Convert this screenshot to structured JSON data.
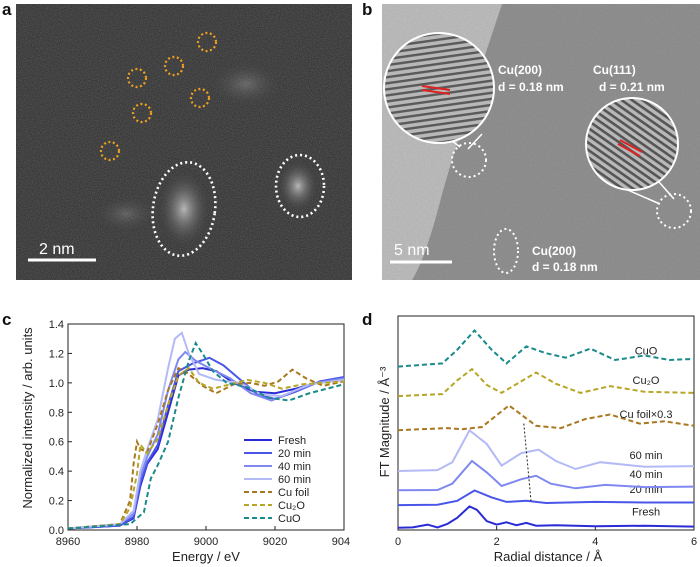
{
  "panels": {
    "a": {
      "letter": "a",
      "scale_bar": "2 nm"
    },
    "b": {
      "letter": "b",
      "scale_bar": "5 nm",
      "annotations": [
        {
          "plane": "Cu(200)",
          "d": "d = 0.18 nm"
        },
        {
          "plane": "Cu(111)",
          "d": "d = 0.21 nm"
        },
        {
          "plane": "Cu(200)",
          "d": "d = 0.18 nm"
        }
      ]
    },
    "c": {
      "letter": "c"
    },
    "d": {
      "letter": "d"
    }
  },
  "chart_data": [
    {
      "type": "line",
      "panel": "c",
      "xlabel": "Energy / eV",
      "ylabel": "Normalized intensity / arb. units",
      "xlim": [
        8960,
        9040
      ],
      "ylim": [
        0.0,
        1.4
      ],
      "x_ticks": [
        "8960",
        "8980",
        "9000",
        "9020",
        "9040"
      ],
      "y_ticks": [
        "0.0",
        "0.2",
        "0.4",
        "0.6",
        "0.8",
        "1.0",
        "1.2",
        "1.4"
      ],
      "legend_position": "bottom-right",
      "series": [
        {
          "name": "Fresh",
          "color": "#2b2bd6",
          "dash": "solid",
          "points": [
            [
              8960,
              0.01
            ],
            [
              8975,
              0.03
            ],
            [
              8979,
              0.08
            ],
            [
              8981,
              0.3
            ],
            [
              8983,
              0.45
            ],
            [
              8986,
              0.55
            ],
            [
              8989,
              0.8
            ],
            [
              8992,
              1.05
            ],
            [
              8995,
              1.09
            ],
            [
              8999,
              1.1
            ],
            [
              9003,
              1.08
            ],
            [
              9008,
              1.0
            ],
            [
              9014,
              0.94
            ],
            [
              9020,
              0.93
            ],
            [
              9026,
              0.96
            ],
            [
              9032,
              1.0
            ],
            [
              9040,
              1.02
            ]
          ]
        },
        {
          "name": "20 min",
          "color": "#4a56e8",
          "dash": "solid",
          "points": [
            [
              8960,
              0.01
            ],
            [
              8975,
              0.03
            ],
            [
              8979,
              0.09
            ],
            [
              8981,
              0.32
            ],
            [
              8983,
              0.46
            ],
            [
              8986,
              0.58
            ],
            [
              8989,
              0.85
            ],
            [
              8992,
              1.08
            ],
            [
              8996,
              1.13
            ],
            [
              9001,
              1.17
            ],
            [
              9005,
              1.12
            ],
            [
              9010,
              1.02
            ],
            [
              9015,
              0.92
            ],
            [
              9020,
              0.89
            ],
            [
              9026,
              0.94
            ],
            [
              9033,
              1.01
            ],
            [
              9040,
              1.04
            ]
          ]
        },
        {
          "name": "40 min",
          "color": "#7e88f0",
          "dash": "solid",
          "points": [
            [
              8960,
              0.01
            ],
            [
              8975,
              0.04
            ],
            [
              8979,
              0.11
            ],
            [
              8981,
              0.36
            ],
            [
              8983,
              0.5
            ],
            [
              8986,
              0.65
            ],
            [
              8989,
              0.95
            ],
            [
              8992,
              1.16
            ],
            [
              8994,
              1.21
            ],
            [
              8997,
              1.15
            ],
            [
              9001,
              1.1
            ],
            [
              9007,
              1.03
            ],
            [
              9013,
              0.93
            ],
            [
              9019,
              0.88
            ],
            [
              9025,
              0.94
            ],
            [
              9032,
              1.0
            ],
            [
              9040,
              1.03
            ]
          ]
        },
        {
          "name": "60 min",
          "color": "#b3baf6",
          "dash": "solid",
          "points": [
            [
              8960,
              0.01
            ],
            [
              8975,
              0.04
            ],
            [
              8979,
              0.13
            ],
            [
              8981,
              0.4
            ],
            [
              8983,
              0.55
            ],
            [
              8986,
              0.75
            ],
            [
              8989,
              1.1
            ],
            [
              8991,
              1.3
            ],
            [
              8993,
              1.34
            ],
            [
              8995,
              1.2
            ],
            [
              8998,
              1.06
            ],
            [
              9003,
              1.02
            ],
            [
              9010,
              1.0
            ],
            [
              9016,
              0.92
            ],
            [
              9022,
              0.91
            ],
            [
              9030,
              0.99
            ],
            [
              9040,
              1.02
            ]
          ]
        },
        {
          "name": "Cu  foil",
          "color": "#a9781e",
          "dash": "dashed",
          "points": [
            [
              8960,
              0.01
            ],
            [
              8975,
              0.04
            ],
            [
              8978,
              0.2
            ],
            [
              8979,
              0.45
            ],
            [
              8980,
              0.6
            ],
            [
              8981,
              0.55
            ],
            [
              8983,
              0.53
            ],
            [
              8986,
              0.72
            ],
            [
              8989,
              0.95
            ],
            [
              8992,
              1.1
            ],
            [
              8995,
              1.06
            ],
            [
              8999,
              0.98
            ],
            [
              9003,
              0.93
            ],
            [
              9008,
              0.99
            ],
            [
              9013,
              1.0
            ],
            [
              9017,
              0.98
            ],
            [
              9021,
              1.01
            ],
            [
              9025,
              1.09
            ],
            [
              9029,
              1.03
            ],
            [
              9034,
              0.98
            ],
            [
              9040,
              1.01
            ]
          ]
        },
        {
          "name": "Cu₂O",
          "color": "#b7a626",
          "dash": "dashed",
          "points": [
            [
              8960,
              0.01
            ],
            [
              8975,
              0.04
            ],
            [
              8978,
              0.15
            ],
            [
              8980,
              0.38
            ],
            [
              8981,
              0.58
            ],
            [
              8983,
              0.52
            ],
            [
              8986,
              0.62
            ],
            [
              8989,
              0.85
            ],
            [
              8992,
              1.05
            ],
            [
              8995,
              1.1
            ],
            [
              8998,
              1.0
            ],
            [
              9002,
              0.96
            ],
            [
              9007,
              0.99
            ],
            [
              9012,
              1.02
            ],
            [
              9017,
              1.0
            ],
            [
              9022,
              0.96
            ],
            [
              9028,
              0.99
            ],
            [
              9040,
              1.01
            ]
          ]
        },
        {
          "name": "CuO",
          "color": "#1b8a8a",
          "dash": "dashed",
          "points": [
            [
              8960,
              0.01
            ],
            [
              8978,
              0.04
            ],
            [
              8982,
              0.12
            ],
            [
              8984,
              0.35
            ],
            [
              8986,
              0.44
            ],
            [
              8989,
              0.6
            ],
            [
              8992,
              0.9
            ],
            [
              8995,
              1.15
            ],
            [
              8997,
              1.27
            ],
            [
              8999,
              1.2
            ],
            [
              9002,
              1.08
            ],
            [
              9006,
              1.0
            ],
            [
              9012,
              0.97
            ],
            [
              9018,
              0.9
            ],
            [
              9024,
              0.88
            ],
            [
              9030,
              0.93
            ],
            [
              9040,
              0.99
            ]
          ]
        }
      ]
    },
    {
      "type": "line",
      "panel": "d",
      "xlabel": "Radial distance / Å",
      "ylabel": "FT Magnitude / Å⁻³",
      "xlim": [
        0,
        6
      ],
      "x_ticks": [
        "0",
        "2",
        "4",
        "6"
      ],
      "series": [
        {
          "name": "Fresh",
          "color": "#2b2bd6",
          "dash": "solid",
          "offset": 0.0,
          "points": [
            [
              0,
              0.02
            ],
            [
              0.3,
              0.05
            ],
            [
              0.6,
              0.3
            ],
            [
              0.8,
              0.05
            ],
            [
              1.0,
              0.35
            ],
            [
              1.2,
              0.9
            ],
            [
              1.45,
              1.9
            ],
            [
              1.6,
              1.6
            ],
            [
              1.8,
              0.6
            ],
            [
              2.0,
              0.3
            ],
            [
              2.2,
              0.5
            ],
            [
              2.4,
              0.25
            ],
            [
              2.6,
              0.45
            ],
            [
              2.8,
              0.2
            ],
            [
              3.2,
              0.25
            ],
            [
              4,
              0.15
            ],
            [
              5,
              0.2
            ],
            [
              6,
              0.12
            ]
          ]
        },
        {
          "name": "20 min",
          "color": "#4a56e8",
          "dash": "solid",
          "offset": 2.0,
          "points": [
            [
              0,
              0.02
            ],
            [
              0.8,
              0.05
            ],
            [
              1.2,
              0.4
            ],
            [
              1.55,
              1.3
            ],
            [
              1.9,
              0.7
            ],
            [
              2.2,
              0.3
            ],
            [
              2.6,
              0.4
            ],
            [
              3.0,
              0.2
            ],
            [
              4,
              0.3
            ],
            [
              5,
              0.25
            ],
            [
              6,
              0.25
            ]
          ]
        },
        {
          "name": "40 min",
          "color": "#7e88f0",
          "dash": "solid",
          "offset": 3.3,
          "points": [
            [
              0,
              0.02
            ],
            [
              0.8,
              0.05
            ],
            [
              1.1,
              0.6
            ],
            [
              1.5,
              2.6
            ],
            [
              1.8,
              1.6
            ],
            [
              2.1,
              0.4
            ],
            [
              2.5,
              1.0
            ],
            [
              2.8,
              1.3
            ],
            [
              3.1,
              0.6
            ],
            [
              3.6,
              0.2
            ],
            [
              4.2,
              0.5
            ],
            [
              5,
              0.3
            ],
            [
              6,
              0.35
            ]
          ]
        },
        {
          "name": "60 min",
          "color": "#b3baf6",
          "dash": "solid",
          "offset": 5.0,
          "points": [
            [
              0,
              0.02
            ],
            [
              0.8,
              0.1
            ],
            [
              1.1,
              0.8
            ],
            [
              1.45,
              3.6
            ],
            [
              1.8,
              2.4
            ],
            [
              2.1,
              0.5
            ],
            [
              2.5,
              1.6
            ],
            [
              2.85,
              1.9
            ],
            [
              3.2,
              0.9
            ],
            [
              3.6,
              0.2
            ],
            [
              4.1,
              0.8
            ],
            [
              5,
              0.4
            ],
            [
              6,
              0.45
            ]
          ]
        },
        {
          "name": "Cu foil×0.3",
          "color": "#a9781e",
          "dash": "dashed",
          "offset": 8.6,
          "points": [
            [
              0,
              0.02
            ],
            [
              1.0,
              0.2
            ],
            [
              1.3,
              0.1
            ],
            [
              1.7,
              0.3
            ],
            [
              2.25,
              2.2
            ],
            [
              2.8,
              0.4
            ],
            [
              3.3,
              0.2
            ],
            [
              3.8,
              1.0
            ],
            [
              4.3,
              1.4
            ],
            [
              4.9,
              0.6
            ],
            [
              5.4,
              0.8
            ],
            [
              6,
              0.4
            ]
          ]
        },
        {
          "name": "Cu₂O",
          "color": "#b7a626",
          "dash": "dashed",
          "offset": 11.6,
          "points": [
            [
              0,
              0.02
            ],
            [
              0.9,
              0.2
            ],
            [
              1.2,
              1.4
            ],
            [
              1.5,
              2.4
            ],
            [
              1.8,
              1.0
            ],
            [
              2.1,
              0.3
            ],
            [
              2.45,
              1.2
            ],
            [
              2.8,
              2.1
            ],
            [
              3.2,
              1.1
            ],
            [
              3.7,
              0.3
            ],
            [
              4.3,
              0.9
            ],
            [
              5,
              0.4
            ],
            [
              6,
              0.3
            ]
          ]
        },
        {
          "name": "CuO",
          "color": "#1b8a8a",
          "dash": "dashed",
          "offset": 14.2,
          "points": [
            [
              0,
              0.02
            ],
            [
              0.9,
              0.3
            ],
            [
              1.2,
              1.5
            ],
            [
              1.55,
              3.2
            ],
            [
              1.9,
              1.5
            ],
            [
              2.2,
              0.3
            ],
            [
              2.6,
              1.8
            ],
            [
              3.0,
              1.2
            ],
            [
              3.4,
              0.8
            ],
            [
              3.9,
              1.6
            ],
            [
              4.4,
              0.6
            ],
            [
              5,
              1.0
            ],
            [
              5.5,
              0.6
            ],
            [
              6,
              0.7
            ]
          ]
        }
      ],
      "dotted_guide": {
        "from": [
          2.55,
          9.2
        ],
        "to": [
          2.7,
          2.2
        ]
      }
    }
  ]
}
